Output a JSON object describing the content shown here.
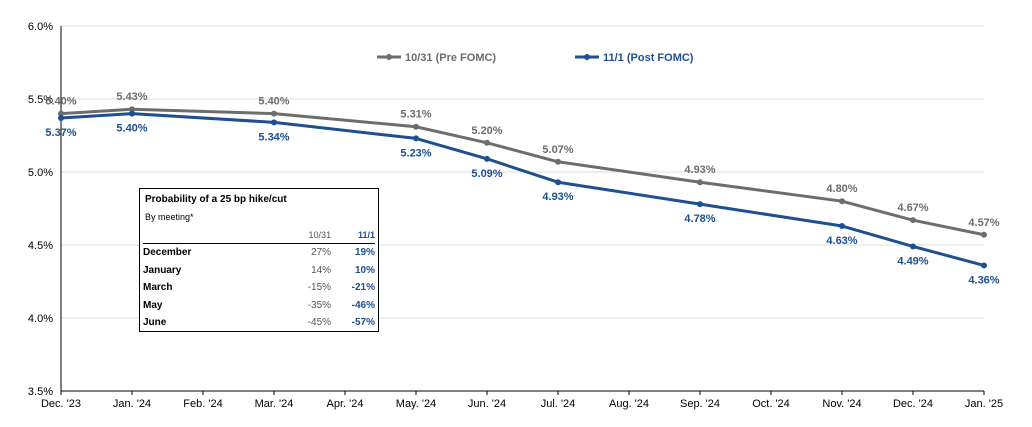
{
  "chart_data": {
    "type": "line",
    "categories": [
      "Dec. '23",
      "Jan. '24",
      "Feb. '24",
      "Mar. '24",
      "Apr. '24",
      "May. '24",
      "Jun. '24",
      "Jul. '24",
      "Aug. '24",
      "Sep. '24",
      "Oct. '24",
      "Nov. '24",
      "Dec. '24",
      "Jan. '25"
    ],
    "ylim": [
      3.5,
      6.0
    ],
    "yticks": [
      "3.5%",
      "4.0%",
      "4.5%",
      "5.0%",
      "5.5%",
      "6.0%"
    ],
    "grid": "horizontal",
    "legend_position": "top-center",
    "series": [
      {
        "name": "10/31 (Pre FOMC)",
        "color": "#6d6d6d",
        "points": [
          [
            0,
            5.4
          ],
          [
            1,
            5.43
          ],
          [
            3,
            5.4
          ],
          [
            5,
            5.31
          ],
          [
            6,
            5.2
          ],
          [
            7,
            5.07
          ],
          [
            9,
            4.93
          ],
          [
            11,
            4.8
          ],
          [
            12,
            4.67
          ],
          [
            13,
            4.57
          ]
        ],
        "labels": [
          "5.40%",
          "5.43%",
          "5.40%",
          "5.31%",
          "5.20%",
          "5.07%",
          "4.93%",
          "4.80%",
          "4.67%",
          "4.57%"
        ]
      },
      {
        "name": "11/1 (Post FOMC)",
        "color": "#1d4f91",
        "points": [
          [
            0,
            5.37
          ],
          [
            1,
            5.4
          ],
          [
            3,
            5.34
          ],
          [
            5,
            5.23
          ],
          [
            6,
            5.09
          ],
          [
            7,
            4.93
          ],
          [
            9,
            4.78
          ],
          [
            11,
            4.63
          ],
          [
            12,
            4.49
          ],
          [
            13,
            4.36
          ]
        ],
        "labels": [
          "5.37%",
          "5.40%",
          "5.34%",
          "5.23%",
          "5.09%",
          "4.93%",
          "4.78%",
          "4.63%",
          "4.49%",
          "4.36%"
        ]
      }
    ]
  },
  "prob_table": {
    "title": "Probability of a 25 bp hike/cut",
    "subtitle": "By meeting*",
    "col_a": "10/31",
    "col_b": "11/1",
    "rows": [
      {
        "meeting": "December",
        "a": "27%",
        "b": "19%"
      },
      {
        "meeting": "January",
        "a": "14%",
        "b": "10%"
      },
      {
        "meeting": "March",
        "a": "-15%",
        "b": "-21%"
      },
      {
        "meeting": "May",
        "a": "-35%",
        "b": "-46%"
      },
      {
        "meeting": "June",
        "a": "-45%",
        "b": "-57%"
      }
    ]
  }
}
